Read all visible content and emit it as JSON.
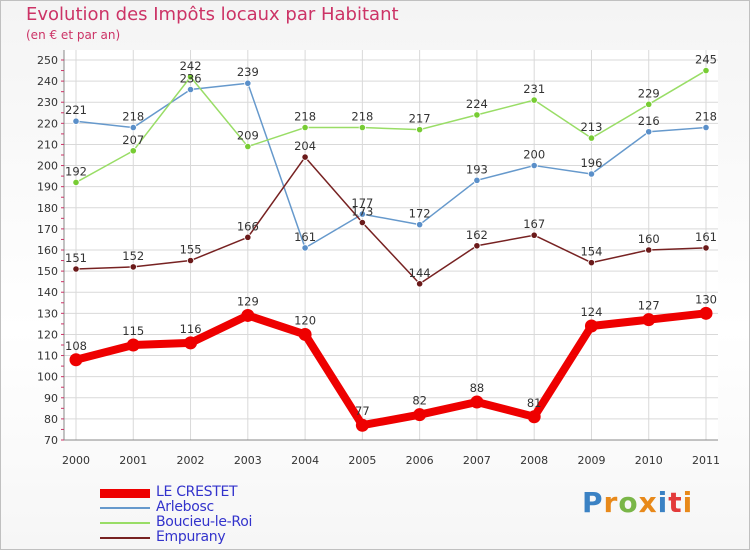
{
  "header": {
    "title": "Evolution des Impôts locaux par Habitant",
    "subtitle": "(en € et par an)"
  },
  "logo": {
    "text": "Proxiti",
    "colors": [
      "#3b82c4",
      "#e8891a",
      "#7ab648",
      "#e8891a",
      "#3b82c4",
      "#e33b3b",
      "#e8891a"
    ]
  },
  "chart_data": {
    "type": "line",
    "title": "Evolution des Impôts locaux par Habitant",
    "subtitle": "(en € et par an)",
    "x": [
      2000,
      2001,
      2002,
      2003,
      2004,
      2005,
      2006,
      2007,
      2008,
      2009,
      2010,
      2011
    ],
    "x_tick_labels": [
      "2000",
      "2001",
      "2002",
      "2003",
      "2004",
      "2005",
      "2006",
      "2007",
      "2008",
      "2009",
      "2010",
      "2011"
    ],
    "ylim": [
      70,
      250
    ],
    "y_ticks": [
      70,
      80,
      90,
      100,
      110,
      120,
      130,
      140,
      150,
      160,
      170,
      180,
      190,
      200,
      210,
      220,
      230,
      240,
      250
    ],
    "grid": true,
    "legend_position": "bottom-left",
    "series": [
      {
        "name": "LE CRESTET",
        "color": "#ee0000",
        "marker": "#ee0000",
        "bold": true,
        "values": [
          108,
          115,
          116,
          129,
          120,
          77,
          82,
          88,
          81,
          124,
          127,
          130
        ],
        "labels": [
          "108",
          "115",
          "116",
          "129",
          "120",
          "77",
          "82",
          "88",
          "81",
          "124",
          "127",
          "130"
        ]
      },
      {
        "name": "Arlebosc",
        "color": "#6699cc",
        "marker": "#5a8fc9",
        "bold": false,
        "values": [
          221,
          218,
          236,
          239,
          161,
          177,
          172,
          193,
          200,
          196,
          216,
          218
        ],
        "labels": [
          "221",
          "218",
          "236",
          "239",
          "161",
          "177",
          "172",
          "193",
          "200",
          "196",
          "216",
          "218"
        ]
      },
      {
        "name": "Boucieu-le-Roi",
        "color": "#99dd66",
        "marker": "#77cc33",
        "bold": false,
        "values": [
          192,
          207,
          242,
          209,
          218,
          218,
          217,
          224,
          231,
          213,
          229,
          245
        ],
        "labels": [
          "192",
          "207",
          "242",
          "209",
          "218",
          "218",
          "217",
          "224",
          "231",
          "213",
          "229",
          "245"
        ]
      },
      {
        "name": "Empurany",
        "color": "#772222",
        "marker": "#6b1a1a",
        "bold": false,
        "values": [
          151,
          152,
          155,
          166,
          204,
          173,
          144,
          162,
          167,
          154,
          160,
          161
        ],
        "labels": [
          "151",
          "152",
          "155",
          "166",
          "204",
          "173",
          "144",
          "162",
          "167",
          "154",
          "160",
          "161"
        ]
      }
    ]
  }
}
